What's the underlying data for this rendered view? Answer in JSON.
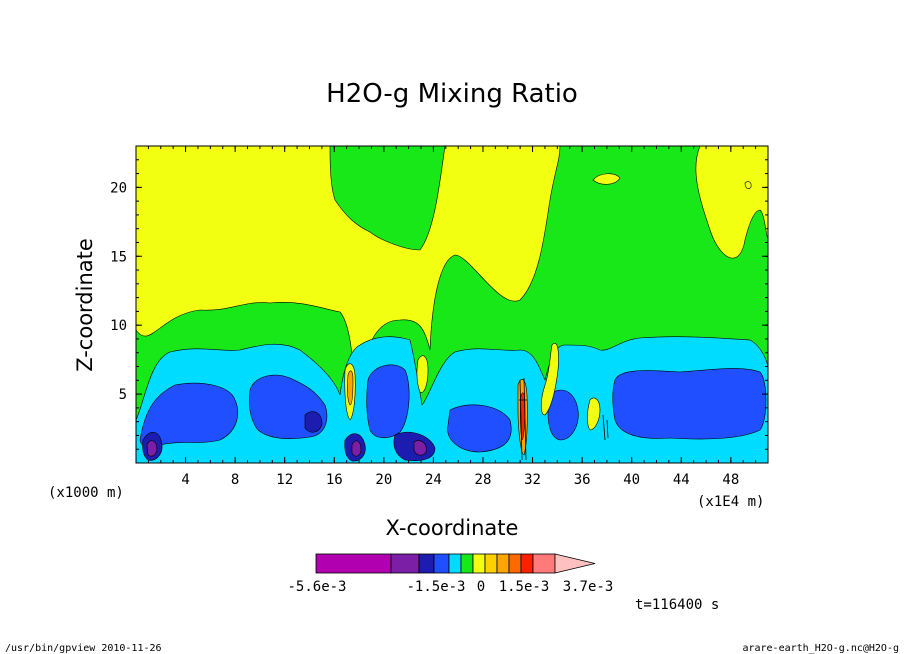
{
  "chart_data": {
    "type": "heatmap",
    "title": "H2O-g Mixing Ratio",
    "xlabel": "X-coordinate",
    "ylabel": "Z-coordinate",
    "x_unit": "(x1000 m)",
    "x_range_unit": "(x1E4 m)",
    "x_ticks": [
      "4",
      "8",
      "12",
      "16",
      "20",
      "24",
      "28",
      "32",
      "36",
      "40",
      "44",
      "48"
    ],
    "y_ticks": [
      "5",
      "10",
      "15",
      "20"
    ],
    "xlim": [
      0,
      51
    ],
    "ylim": [
      0,
      23
    ],
    "colorbar": {
      "levels": [
        "-5.6e-3",
        "-1.5e-3",
        "0",
        "1.5e-3",
        "3.7e-3"
      ],
      "colors": [
        "#b000b0",
        "#7a1fa6",
        "#1c1cb0",
        "#1f4fff",
        "#00dcff",
        "#18e818",
        "#f2ff10",
        "#ffd000",
        "#ffa500",
        "#ff6a00",
        "#ff2000",
        "#ff7a7a",
        "#ffc0c0"
      ]
    },
    "time_label": "t=116400 s"
  },
  "footer": {
    "left": "/usr/bin/gpview  2010-11-26",
    "right": "arare-earth_H2O-g.nc@H2O-g"
  }
}
